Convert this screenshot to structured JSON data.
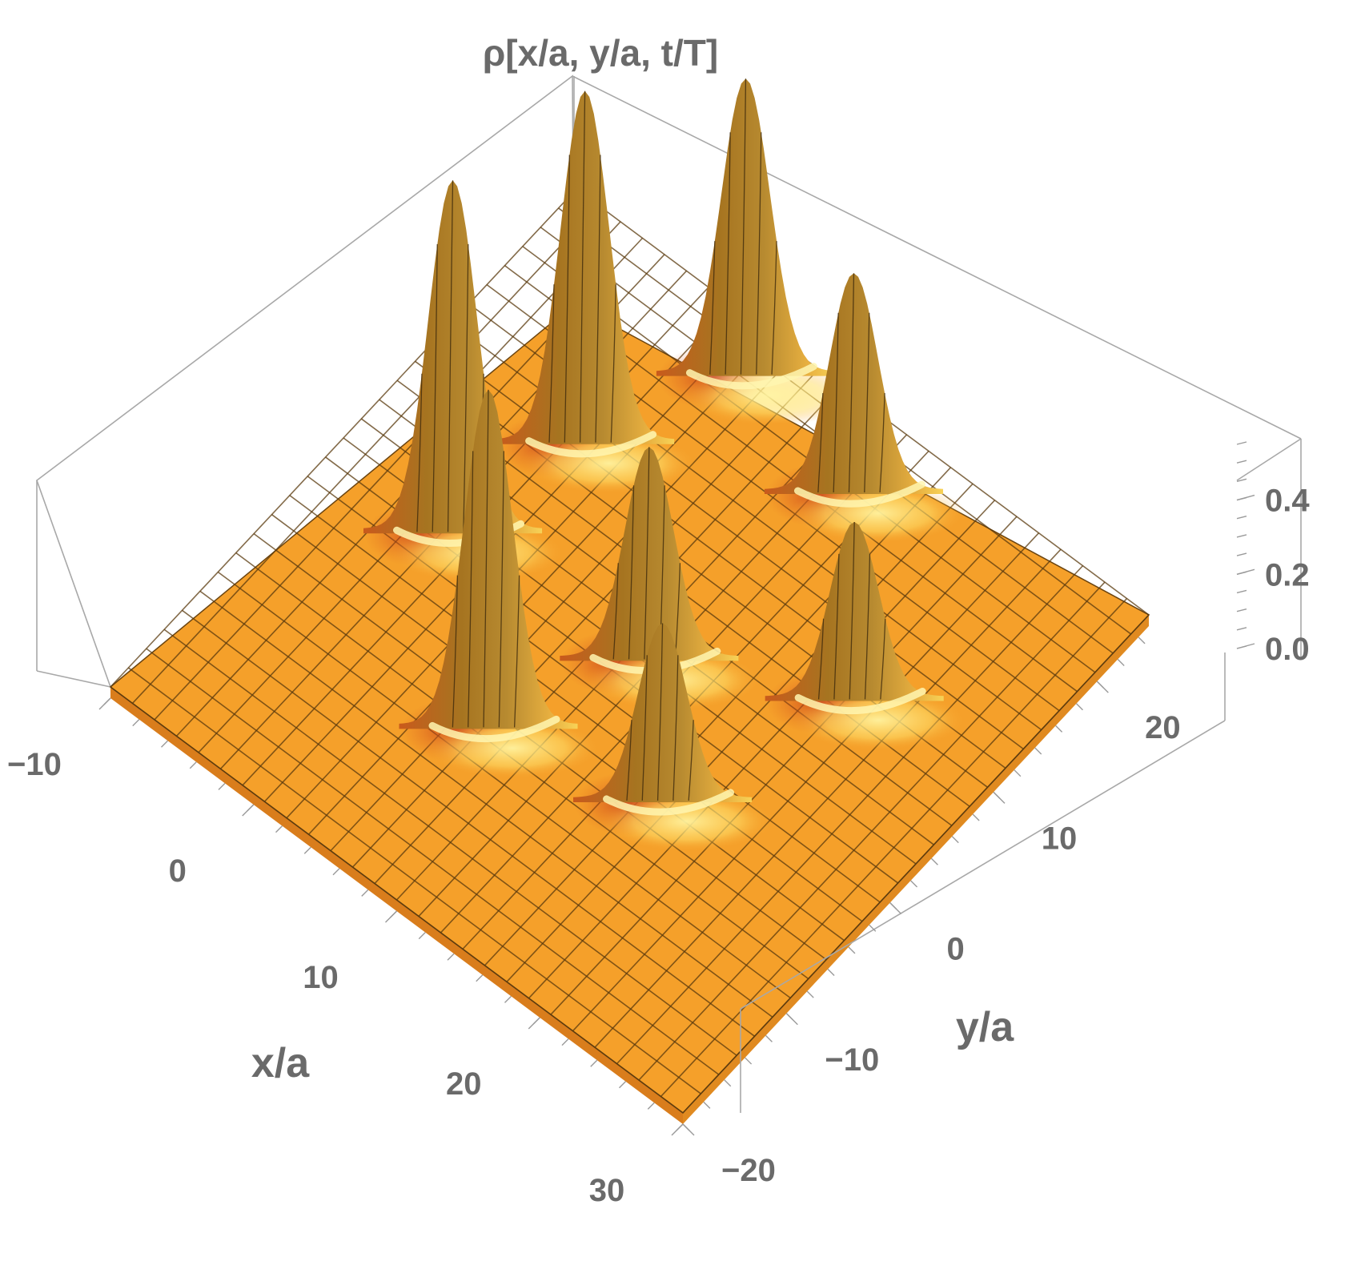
{
  "chart_data": {
    "type": "surface3d",
    "title": "ρ[x/a, y/a, t/T]",
    "xlabel": "x/a",
    "ylabel": "y/a",
    "zlabel": "",
    "xlim": [
      -10,
      30
    ],
    "ylim": [
      -20,
      25
    ],
    "zlim": [
      0,
      0.55
    ],
    "x_ticks": [
      "−10",
      "0",
      "10",
      "20",
      "30"
    ],
    "y_ticks": [
      "−20",
      "−10",
      "0",
      "10",
      "20"
    ],
    "z_ticks": [
      "0.0",
      "0.2",
      "0.4"
    ],
    "x_tick_values": [
      -10,
      0,
      10,
      20,
      30
    ],
    "y_tick_values": [
      -20,
      -10,
      0,
      10,
      20
    ],
    "z_tick_values": [
      0,
      0.2,
      0.4
    ],
    "peaks": [
      {
        "x": -2,
        "y": 2,
        "height": 0.5
      },
      {
        "x": 0,
        "y": 12,
        "height": 0.5
      },
      {
        "x": 4,
        "y": 22,
        "height": 0.42
      },
      {
        "x": 7,
        "y": -7,
        "height": 0.48
      },
      {
        "x": 13,
        "y": 20,
        "height": 0.31
      },
      {
        "x": 11,
        "y": 3,
        "height": 0.3
      },
      {
        "x": 21,
        "y": 9,
        "height": 0.25
      },
      {
        "x": 17,
        "y": -4,
        "height": 0.25
      }
    ],
    "surface_color": "#f5a02a",
    "grid": true
  }
}
